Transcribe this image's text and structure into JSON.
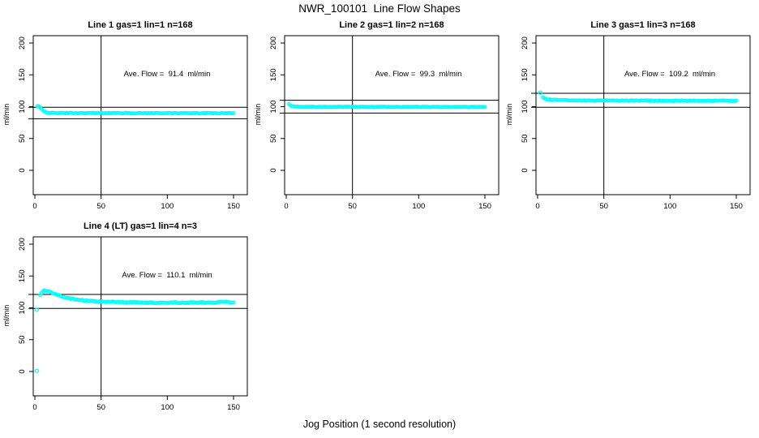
{
  "page": {
    "title": "NWR_100101  Line Flow Shapes",
    "xlabel": "Jog Position (1 second resolution)"
  },
  "chart_data": {
    "type": "scatter",
    "title": "NWR_100101  Line Flow Shapes",
    "xlabel": "Jog Position (1 second resolution)",
    "ylabel": "ml/min",
    "x_ticks": [
      0,
      50,
      100,
      150
    ],
    "y_ticks": [
      0,
      50,
      100,
      150,
      200
    ],
    "xlim": [
      0,
      155
    ],
    "ylim": [
      -40,
      212
    ],
    "grid": false,
    "point_color": "#00FFFF",
    "line_color": "#000000",
    "panels": [
      {
        "title": "Line 1 gas=1 lin=1 n=168",
        "annotation": "Ave. Flow =  91.4  ml/min",
        "ave_flow": 91.4,
        "n": 168,
        "ylabel": "ml/min",
        "ref_lines": [
          99,
          81
        ],
        "vline_x": 50,
        "noise": 0.5,
        "keypoints": [
          [
            2,
            101
          ],
          [
            3,
            100.3
          ],
          [
            4,
            98.5
          ],
          [
            5,
            96.2
          ],
          [
            6,
            94.1
          ],
          [
            7,
            92.4
          ],
          [
            8,
            91.4
          ],
          [
            10,
            90.4
          ],
          [
            15,
            90.0
          ],
          [
            60,
            89.9
          ],
          [
            100,
            89.8
          ],
          [
            150,
            89.8
          ]
        ],
        "outliers": []
      },
      {
        "title": "Line 2 gas=1 lin=2 n=168",
        "annotation": "Ave. Flow =  99.3  ml/min",
        "ave_flow": 99.3,
        "n": 168,
        "ylabel": "ml/min",
        "ref_lines": [
          110,
          90
        ],
        "vline_x": 50,
        "noise": 0.5,
        "keypoints": [
          [
            2,
            104
          ],
          [
            3,
            102.6
          ],
          [
            4,
            101.2
          ],
          [
            5,
            100.5
          ],
          [
            7,
            100.0
          ],
          [
            12,
            99.7
          ],
          [
            60,
            99.6
          ],
          [
            150,
            99.5
          ]
        ],
        "outliers": []
      },
      {
        "title": "Line 3 gas=1 lin=3 n=168",
        "annotation": "Ave. Flow =  109.2  ml/min",
        "ave_flow": 109.2,
        "n": 168,
        "ylabel": "ml/min",
        "ref_lines": [
          121,
          99
        ],
        "vline_x": 50,
        "noise": 0.6,
        "keypoints": [
          [
            4,
            114.5
          ],
          [
            5,
            113.2
          ],
          [
            6,
            112.2
          ],
          [
            8,
            111.2
          ],
          [
            12,
            110.5
          ],
          [
            20,
            110.0
          ],
          [
            60,
            109.5
          ],
          [
            110,
            109.3
          ],
          [
            150,
            109.2
          ]
        ],
        "outliers": [
          [
            2,
            122
          ]
        ]
      },
      {
        "title": "Line 4 (LT) gas=1 lin=4 n=3",
        "annotation": "Ave. Flow =  110.1  ml/min",
        "ave_flow": 110.1,
        "n": 3,
        "ylabel": "ml/min",
        "ref_lines": [
          121,
          99
        ],
        "vline_x": 50,
        "noise": 0.9,
        "keypoints": [
          [
            4,
            119.5
          ],
          [
            5,
            123.5
          ],
          [
            6,
            125.5
          ],
          [
            7,
            126.8
          ],
          [
            8,
            127.2
          ],
          [
            9,
            127.0
          ],
          [
            10,
            126.3
          ],
          [
            12,
            124.6
          ],
          [
            14,
            122.8
          ],
          [
            16,
            121.0
          ],
          [
            18,
            119.4
          ],
          [
            20,
            118.0
          ],
          [
            23,
            116.3
          ],
          [
            26,
            114.9
          ],
          [
            30,
            113.4
          ],
          [
            34,
            112.3
          ],
          [
            38,
            111.4
          ],
          [
            43,
            110.6
          ],
          [
            48,
            110.0
          ],
          [
            55,
            109.4
          ],
          [
            65,
            108.8
          ],
          [
            75,
            108.4
          ],
          [
            85,
            108.2
          ],
          [
            95,
            108.1
          ],
          [
            105,
            108.2
          ],
          [
            115,
            108.1
          ],
          [
            125,
            108.3
          ],
          [
            132,
            108.0
          ],
          [
            138,
            108.6
          ],
          [
            143,
            109.3
          ],
          [
            147,
            109.0
          ],
          [
            150,
            108.8
          ]
        ],
        "outliers": [
          [
            1.5,
            97
          ],
          [
            1.5,
            1
          ]
        ]
      }
    ]
  }
}
